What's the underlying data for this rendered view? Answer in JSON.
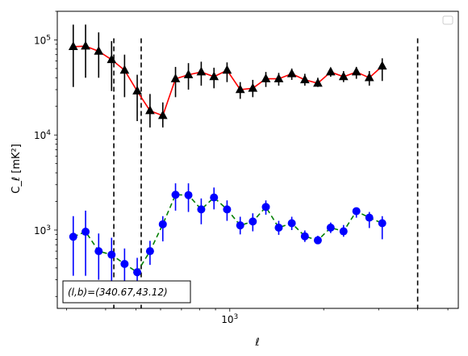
{
  "chart_data": {
    "type": "line",
    "title": "",
    "xlabel": "ℓ",
    "ylabel": "C_ℓ [mK²]",
    "xscale": "log",
    "yscale": "log",
    "xlim": [
      280,
      5400
    ],
    "ylim": [
      150,
      200000
    ],
    "x_tick_labels": [
      {
        "value": 1000,
        "base": "10",
        "exp": "3"
      }
    ],
    "y_tick_labels": [
      {
        "value": 1000,
        "base": "10",
        "exp": "3"
      },
      {
        "value": 10000,
        "base": "10",
        "exp": "4"
      },
      {
        "value": 100000,
        "base": "10",
        "exp": "5"
      }
    ],
    "grid": false,
    "legend": "top-right (empty)",
    "annotation": "(l,b)=(340.67,43.12)",
    "vlines": [
      425,
      520,
      4000
    ],
    "series": [
      {
        "color": "#ff0000",
        "marker": "triangle",
        "marker_color": "#000000",
        "line_style": "solid",
        "points": [
          {
            "x": 315,
            "y": 85000,
            "lo": 32000,
            "hi": 145000
          },
          {
            "x": 345,
            "y": 86000,
            "lo": 40000,
            "hi": 145000
          },
          {
            "x": 380,
            "y": 76000,
            "lo": 40000,
            "hi": 120000
          },
          {
            "x": 418,
            "y": 62000,
            "lo": 29000,
            "hi": 97000
          },
          {
            "x": 460,
            "y": 48000,
            "lo": 25000,
            "hi": 70000
          },
          {
            "x": 505,
            "y": 29000,
            "lo": 14000,
            "hi": 43000
          },
          {
            "x": 555,
            "y": 18000,
            "lo": 12000,
            "hi": 27000
          },
          {
            "x": 610,
            "y": 16000,
            "lo": 12000,
            "hi": 22000
          },
          {
            "x": 670,
            "y": 39000,
            "lo": 25000,
            "hi": 52000
          },
          {
            "x": 737,
            "y": 43000,
            "lo": 30000,
            "hi": 57000
          },
          {
            "x": 810,
            "y": 46000,
            "lo": 33000,
            "hi": 59000
          },
          {
            "x": 890,
            "y": 41000,
            "lo": 31000,
            "hi": 51000
          },
          {
            "x": 980,
            "y": 48000,
            "lo": 36000,
            "hi": 58000
          },
          {
            "x": 1080,
            "y": 30000,
            "lo": 24000,
            "hi": 36000
          },
          {
            "x": 1185,
            "y": 31000,
            "lo": 25000,
            "hi": 38000
          },
          {
            "x": 1305,
            "y": 39000,
            "lo": 32000,
            "hi": 46000
          },
          {
            "x": 1435,
            "y": 39000,
            "lo": 33000,
            "hi": 45000
          },
          {
            "x": 1580,
            "y": 44000,
            "lo": 38000,
            "hi": 50000
          },
          {
            "x": 1740,
            "y": 38000,
            "lo": 33000,
            "hi": 44000
          },
          {
            "x": 1915,
            "y": 35000,
            "lo": 32000,
            "hi": 40000
          },
          {
            "x": 2105,
            "y": 46000,
            "lo": 41000,
            "hi": 51000
          },
          {
            "x": 2315,
            "y": 41000,
            "lo": 36000,
            "hi": 47000
          },
          {
            "x": 2545,
            "y": 46000,
            "lo": 39000,
            "hi": 52000
          },
          {
            "x": 2800,
            "y": 40000,
            "lo": 33000,
            "hi": 47000
          },
          {
            "x": 3080,
            "y": 53000,
            "lo": 37000,
            "hi": 64000
          }
        ]
      },
      {
        "color": "#008000",
        "marker": "circle",
        "marker_color": "#0000ff",
        "line_style": "dashed",
        "points": [
          {
            "x": 315,
            "y": 850,
            "lo": 330,
            "hi": 1400
          },
          {
            "x": 345,
            "y": 960,
            "lo": 330,
            "hi": 1600
          },
          {
            "x": 380,
            "y": 600,
            "lo": 300,
            "hi": 920
          },
          {
            "x": 418,
            "y": 550,
            "lo": 280,
            "hi": 830
          },
          {
            "x": 460,
            "y": 440,
            "lo": 240,
            "hi": 640
          },
          {
            "x": 505,
            "y": 360,
            "lo": 210,
            "hi": 510
          },
          {
            "x": 555,
            "y": 600,
            "lo": 430,
            "hi": 770
          },
          {
            "x": 610,
            "y": 1150,
            "lo": 760,
            "hi": 1400
          },
          {
            "x": 670,
            "y": 2350,
            "lo": 1600,
            "hi": 3100
          },
          {
            "x": 737,
            "y": 2330,
            "lo": 1550,
            "hi": 3100
          },
          {
            "x": 810,
            "y": 1650,
            "lo": 1150,
            "hi": 2150
          },
          {
            "x": 890,
            "y": 2200,
            "lo": 1650,
            "hi": 2800
          },
          {
            "x": 980,
            "y": 1650,
            "lo": 1250,
            "hi": 2050
          },
          {
            "x": 1080,
            "y": 1120,
            "lo": 900,
            "hi": 1380
          },
          {
            "x": 1185,
            "y": 1230,
            "lo": 970,
            "hi": 1500
          },
          {
            "x": 1305,
            "y": 1750,
            "lo": 1450,
            "hi": 2050
          },
          {
            "x": 1435,
            "y": 1060,
            "lo": 890,
            "hi": 1250
          },
          {
            "x": 1580,
            "y": 1180,
            "lo": 1000,
            "hi": 1380
          },
          {
            "x": 1740,
            "y": 860,
            "lo": 750,
            "hi": 990
          },
          {
            "x": 1915,
            "y": 780,
            "lo": 710,
            "hi": 870
          },
          {
            "x": 2105,
            "y": 1060,
            "lo": 930,
            "hi": 1200
          },
          {
            "x": 2315,
            "y": 970,
            "lo": 850,
            "hi": 1130
          },
          {
            "x": 2545,
            "y": 1580,
            "lo": 1350,
            "hi": 1700
          },
          {
            "x": 2800,
            "y": 1350,
            "lo": 1050,
            "hi": 1550
          },
          {
            "x": 3080,
            "y": 1180,
            "lo": 800,
            "hi": 1400
          }
        ]
      }
    ]
  }
}
